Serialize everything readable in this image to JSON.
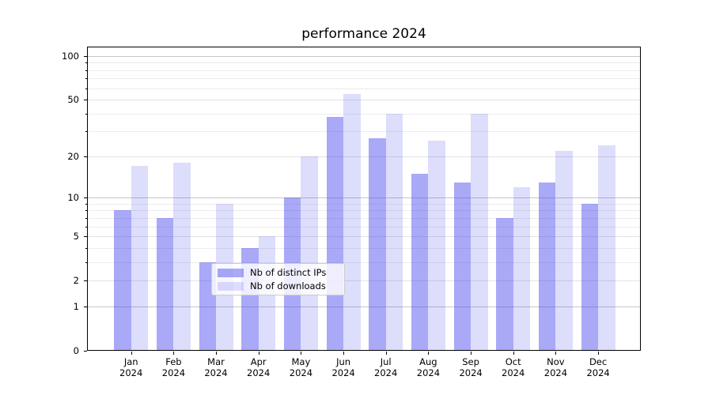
{
  "chart_data": {
    "type": "bar",
    "title": "performance 2024",
    "categories": [
      {
        "m": "Jan",
        "y": "2024"
      },
      {
        "m": "Feb",
        "y": "2024"
      },
      {
        "m": "Mar",
        "y": "2024"
      },
      {
        "m": "Apr",
        "y": "2024"
      },
      {
        "m": "May",
        "y": "2024"
      },
      {
        "m": "Jun",
        "y": "2024"
      },
      {
        "m": "Jul",
        "y": "2024"
      },
      {
        "m": "Aug",
        "y": "2024"
      },
      {
        "m": "Sep",
        "y": "2024"
      },
      {
        "m": "Oct",
        "y": "2024"
      },
      {
        "m": "Nov",
        "y": "2024"
      },
      {
        "m": "Dec",
        "y": "2024"
      }
    ],
    "series": [
      {
        "name": "Nb of distinct IPs",
        "color": "rgba(64,64,240,0.45)",
        "values": [
          8,
          7,
          3,
          4,
          10,
          38,
          27,
          15,
          13,
          7,
          13,
          9
        ]
      },
      {
        "name": "Nb of downloads",
        "color": "rgba(64,64,240,0.18)",
        "values": [
          17,
          18,
          9,
          5,
          20,
          55,
          40,
          26,
          40,
          12,
          22,
          24
        ]
      }
    ],
    "yscale": "log1p",
    "yticks": [
      100,
      50,
      20,
      10,
      5,
      2,
      1,
      0
    ],
    "ylim": [
      0,
      116
    ],
    "grid": "both",
    "legend": {
      "position": "lower center"
    },
    "colors": {
      "bar_base": "#4040f0",
      "grid_major": "#c6c6c6",
      "grid_minor": "#ececec"
    }
  }
}
